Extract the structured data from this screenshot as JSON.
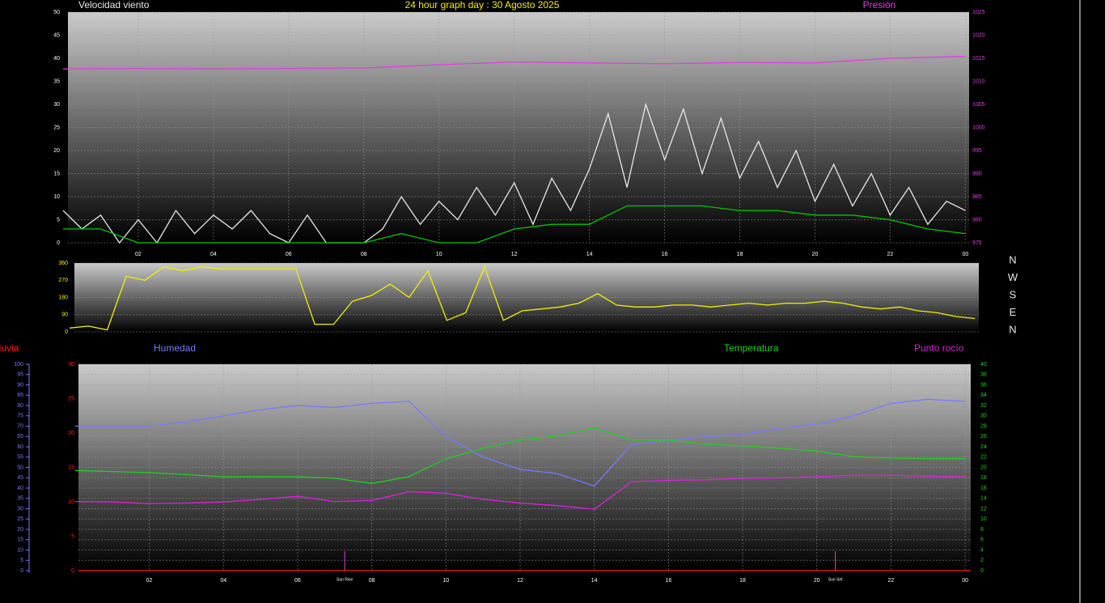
{
  "chart_data": [
    {
      "type": "line",
      "title": "24 hour graph day : 30 Agosto 2025",
      "xlim": [
        0.13,
        24.1
      ],
      "xticks": [
        {
          "value": 2,
          "label": "02"
        },
        {
          "value": 4,
          "label": "04"
        },
        {
          "value": 6,
          "label": "06"
        },
        {
          "value": 8,
          "label": "08"
        },
        10,
        12,
        14,
        16,
        18,
        20,
        22,
        {
          "value": 24,
          "label": "00"
        }
      ],
      "ylim": [
        0,
        50
      ],
      "yticks": [
        0,
        5,
        10,
        15,
        20,
        25,
        30,
        35,
        40,
        45,
        50
      ],
      "y2lim": [
        975,
        1025
      ],
      "y2ticks": [
        975,
        980,
        985,
        990,
        995,
        1000,
        1005,
        1010,
        1015,
        1020,
        1025
      ],
      "grid": true,
      "series": [
        {
          "name": "Velocidad viento",
          "color": "#e8e8e8",
          "x": [
            0,
            0.5,
            1,
            1.5,
            2,
            2.5,
            3,
            3.5,
            4,
            4.5,
            5,
            5.5,
            6,
            6.5,
            7,
            7.5,
            8,
            8.5,
            9,
            9.5,
            10,
            10.5,
            11,
            11.5,
            12,
            12.5,
            13,
            13.5,
            14,
            14.5,
            15,
            15.5,
            16,
            16.5,
            17,
            17.5,
            18,
            18.5,
            19,
            19.5,
            20,
            20.5,
            21,
            21.5,
            22,
            22.5,
            23,
            23.5,
            24
          ],
          "values": [
            7,
            3,
            6,
            0,
            5,
            0,
            7,
            2,
            6,
            3,
            7,
            2,
            0,
            6,
            0,
            0,
            0,
            3,
            10,
            4,
            9,
            5,
            12,
            6,
            13,
            4,
            14,
            7,
            16,
            28,
            12,
            30,
            18,
            29,
            15,
            27,
            14,
            22,
            12,
            20,
            9,
            17,
            8,
            15,
            6,
            12,
            4,
            9,
            7
          ]
        },
        {
          "color": "#00c800",
          "x": [
            0,
            1,
            2,
            3,
            4,
            5,
            6,
            7,
            8,
            9,
            10,
            11,
            12,
            13,
            14,
            15,
            16,
            17,
            18,
            19,
            20,
            21,
            22,
            23,
            24
          ],
          "values": [
            3,
            3,
            0,
            0,
            0,
            0,
            0,
            0,
            0,
            2,
            0,
            0,
            3,
            4,
            4,
            8,
            8,
            8,
            7,
            7,
            6,
            6,
            5,
            3,
            2
          ]
        },
        {
          "name": "Presión",
          "color": "#e040e0",
          "axis": "y2",
          "x": [
            0,
            2,
            4,
            6,
            8,
            10,
            12,
            14,
            16,
            18,
            20,
            22,
            24
          ],
          "values": [
            1012.7,
            1012.8,
            1012.7,
            1012.8,
            1012.9,
            1013.6,
            1014.2,
            1014.0,
            1013.8,
            1014.1,
            1014.0,
            1015.0,
            1015.4
          ]
        }
      ]
    },
    {
      "type": "line",
      "xlim": [
        0.13,
        24.1
      ],
      "ylim": [
        0,
        360
      ],
      "yticks": [
        0,
        90,
        180,
        270,
        360
      ],
      "grid": true,
      "compass_labels": [
        "N",
        "W",
        "S",
        "E",
        "N"
      ],
      "series": [
        {
          "color": "#f0f000",
          "x": [
            0,
            0.5,
            1,
            1.5,
            2,
            2.5,
            3,
            3.5,
            4,
            4.5,
            5,
            5.5,
            6,
            6.5,
            7,
            7.5,
            8,
            8.5,
            9,
            9.5,
            10,
            10.5,
            11,
            11.5,
            12,
            12.5,
            13,
            13.5,
            14,
            14.5,
            15,
            15.5,
            16,
            16.5,
            17,
            17.5,
            18,
            18.5,
            19,
            19.5,
            20,
            20.5,
            21,
            21.5,
            22,
            22.5,
            23,
            23.5,
            24
          ],
          "values": [
            20,
            30,
            10,
            290,
            270,
            340,
            320,
            340,
            330,
            330,
            330,
            330,
            330,
            40,
            40,
            160,
            190,
            250,
            180,
            320,
            60,
            100,
            340,
            60,
            110,
            120,
            130,
            150,
            200,
            140,
            130,
            130,
            140,
            140,
            130,
            140,
            150,
            140,
            150,
            150,
            160,
            150,
            130,
            120,
            130,
            110,
            100,
            80,
            70
          ]
        }
      ]
    },
    {
      "type": "line",
      "xlim": [
        0.09,
        24.15
      ],
      "xticks": [
        {
          "value": 2,
          "label": "02"
        },
        {
          "value": 4,
          "label": "04"
        },
        {
          "value": 6,
          "label": "06"
        },
        {
          "value": 8,
          "label": "08"
        },
        10,
        12,
        14,
        16,
        18,
        20,
        22,
        {
          "value": 24,
          "label": "00"
        }
      ],
      "ylim": [
        0,
        30
      ],
      "yticks": [
        0,
        5,
        10,
        15,
        20,
        25,
        30
      ],
      "y2lim": [
        0,
        40
      ],
      "y2ticks": [
        0,
        2,
        4,
        6,
        8,
        10,
        12,
        14,
        16,
        18,
        20,
        22,
        24,
        26,
        28,
        30,
        32,
        34,
        36,
        38,
        40
      ],
      "y3lim": [
        0,
        100
      ],
      "y3ticks": [
        0,
        5,
        10,
        15,
        20,
        25,
        30,
        35,
        40,
        45,
        50,
        55,
        60,
        65,
        70,
        75,
        80,
        85,
        90,
        95,
        100
      ],
      "grid": true,
      "annotations": [
        {
          "text": "Sun Rise",
          "x": 7.27
        },
        {
          "text": "Sun Set",
          "x": 20.5
        }
      ],
      "series": [
        {
          "name": "Lluvia",
          "color": "#ff2020",
          "x": [
            0.09,
            24.15
          ],
          "values": [
            0,
            0
          ]
        },
        {
          "name": "Humedad",
          "color": "#7878ff",
          "axis": "y3",
          "x": [
            0,
            1,
            2,
            3,
            4,
            5,
            6,
            7,
            8,
            9,
            10,
            11,
            12,
            13,
            14,
            15,
            16,
            17,
            18,
            19,
            20,
            21,
            22,
            23,
            24
          ],
          "values": [
            70,
            70,
            70,
            72,
            75,
            78,
            80,
            79,
            81,
            82,
            65,
            55,
            49,
            47,
            41,
            61,
            63,
            65,
            66,
            69,
            71,
            75,
            81,
            83,
            82
          ]
        },
        {
          "name": "Temperatura",
          "color": "#20d020",
          "axis": "y2",
          "x": [
            0,
            1,
            2,
            3,
            4,
            5,
            6,
            7,
            8,
            9,
            10,
            11,
            12,
            13,
            14,
            15,
            16,
            17,
            18,
            19,
            20,
            21,
            22,
            23,
            24
          ],
          "values": [
            19.4,
            19.2,
            19,
            18.6,
            18.2,
            18.2,
            18.2,
            17.9,
            16.9,
            18.2,
            21.7,
            23.7,
            25.3,
            26.1,
            27.7,
            25.3,
            25.3,
            24.5,
            24.2,
            23.7,
            23.2,
            22.1,
            21.8,
            21.7,
            21.7
          ]
        },
        {
          "name": "Punto rocío",
          "color": "#e020e0",
          "axis": "y2",
          "x": [
            0,
            1,
            2,
            3,
            4,
            5,
            6,
            7,
            8,
            9,
            10,
            11,
            12,
            13,
            14,
            15,
            16,
            17,
            18,
            19,
            20,
            21,
            22,
            23,
            24
          ],
          "values": [
            13.4,
            13.3,
            13,
            13.1,
            13.3,
            13.8,
            14.4,
            13.4,
            13.6,
            15.3,
            15,
            13.8,
            13.1,
            12.6,
            11.9,
            17.2,
            17.5,
            17.6,
            17.9,
            18,
            18.2,
            18.5,
            18.5,
            18.3,
            18.2
          ]
        }
      ]
    }
  ]
}
